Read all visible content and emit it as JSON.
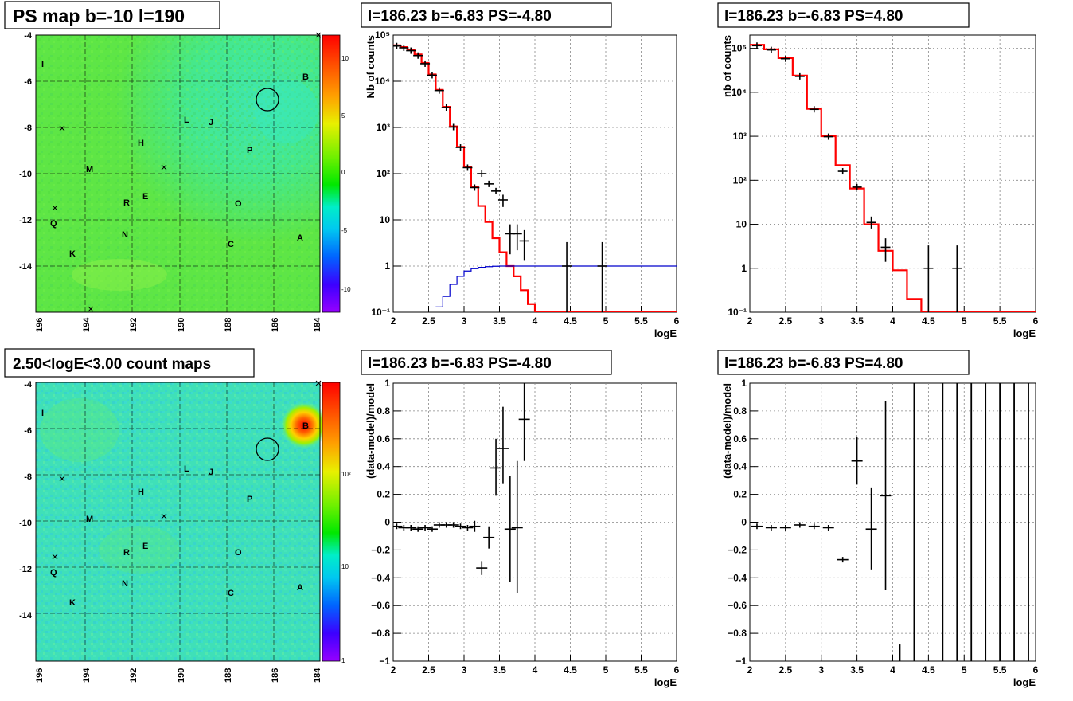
{
  "colors": {
    "red": "#ff0000",
    "blue": "#0000cc",
    "black": "#000000",
    "grid": "#888888"
  },
  "map_top": {
    "title": "PS map b=-10 l=190",
    "xticks": [
      "196",
      "194",
      "192",
      "190",
      "188",
      "186",
      "184"
    ],
    "yticks": [
      "-4",
      "-6",
      "-8",
      "-10",
      "-12",
      "-14"
    ],
    "scale_ticks": [
      "10",
      "5",
      "0",
      "-5",
      "-10"
    ],
    "sources": [
      "I",
      "B",
      "L",
      "J",
      "H",
      "P",
      "M",
      "E",
      "R",
      "O",
      "Q",
      "N",
      "C",
      "A",
      "K"
    ]
  },
  "map_bottom": {
    "title": "2.50<logE<3.00 count maps",
    "xticks": [
      "196",
      "194",
      "192",
      "190",
      "188",
      "186",
      "184"
    ],
    "yticks": [
      "-4",
      "-6",
      "-8",
      "-10",
      "-12",
      "-14"
    ],
    "scale_ticks": [
      "10²",
      "10",
      "1"
    ],
    "sources": [
      "I",
      "B",
      "L",
      "J",
      "H",
      "P",
      "M",
      "E",
      "R",
      "O",
      "Q",
      "N",
      "C",
      "A",
      "K"
    ]
  },
  "chart_data": [
    {
      "type": "line",
      "title": "l=186.23 b=-6.83 PS=-4.80",
      "xlabel": "logE",
      "ylabel": "Nb of counts",
      "xlim": [
        2,
        6
      ],
      "ylim": [
        0.1,
        100000
      ],
      "log_y": true,
      "grid": true,
      "xticks": [
        "2",
        "2.5",
        "3",
        "3.5",
        "4",
        "4.5",
        "5",
        "5.5",
        "6"
      ],
      "yticks": [
        "10⁻¹",
        "1",
        "10",
        "10²",
        "10³",
        "10⁴",
        "10⁵"
      ],
      "series": [
        {
          "style": "step",
          "color": "#ff0000",
          "x": [
            2.0,
            2.1,
            2.2,
            2.3,
            2.4,
            2.5,
            2.6,
            2.7,
            2.8,
            2.9,
            3.0,
            3.1,
            3.2,
            3.3,
            3.4,
            3.5,
            3.6,
            3.7,
            3.8,
            3.9,
            4.0,
            4.1,
            4.2,
            4.3,
            4.4,
            4.5,
            4.6,
            4.7,
            4.8,
            4.9,
            5.0,
            5.1,
            6.0
          ],
          "values": [
            60000,
            55000,
            48000,
            38000,
            25000,
            14000,
            6500,
            2800,
            1050,
            380,
            140,
            52,
            20,
            9,
            4,
            2,
            1,
            0.6,
            0.3,
            0.15,
            0.1,
            0.1,
            0.1,
            0.1,
            0.1,
            0.1,
            0.1,
            0.1,
            0.1,
            0.1,
            0.1,
            0.1,
            0.1
          ]
        },
        {
          "style": "step",
          "color": "#0000cc",
          "x": [
            2.6,
            2.7,
            2.8,
            2.9,
            3.0,
            3.1,
            3.2,
            3.3,
            3.4,
            3.5,
            3.6,
            3.7,
            3.8,
            3.9,
            4.0,
            6.0
          ],
          "values": [
            0.13,
            0.22,
            0.4,
            0.6,
            0.78,
            0.88,
            0.94,
            0.97,
            0.99,
            1,
            1,
            1,
            1,
            1,
            1,
            1
          ]
        },
        {
          "style": "points",
          "color": "#000000",
          "x": [
            2.05,
            2.15,
            2.25,
            2.35,
            2.45,
            2.55,
            2.65,
            2.75,
            2.85,
            2.95,
            3.05,
            3.15,
            3.25,
            3.35,
            3.45,
            3.55,
            3.65,
            3.75,
            3.85,
            4.45,
            4.95
          ],
          "values": [
            58000,
            53000,
            46000,
            36000,
            24000,
            13500,
            6300,
            2700,
            1020,
            370,
            135,
            50,
            100,
            60,
            42,
            27,
            5,
            5,
            3.5,
            1,
            1
          ],
          "err_lo": [
            0,
            0,
            0,
            0,
            0,
            0,
            0,
            0,
            0,
            0,
            0,
            0,
            0,
            0,
            0,
            8,
            3.2,
            2.8,
            2.2,
            0.9,
            0.9
          ],
          "err_hi": [
            0,
            0,
            0,
            0,
            0,
            0,
            0,
            0,
            0,
            0,
            0,
            0,
            0,
            0,
            0,
            8,
            3,
            3,
            2.5,
            2.3,
            2.3
          ]
        }
      ]
    },
    {
      "type": "line",
      "title": "l=186.23 b=-6.83 PS=4.80",
      "xlabel": "logE",
      "ylabel": "nb of counts",
      "xlim": [
        2,
        6
      ],
      "ylim": [
        0.1,
        200000
      ],
      "log_y": true,
      "grid": true,
      "xticks": [
        "2",
        "2.5",
        "3",
        "3.5",
        "4",
        "4.5",
        "5",
        "5.5",
        "6"
      ],
      "yticks": [
        "10⁻¹",
        "1",
        "10",
        "10²",
        "10³",
        "10⁴",
        "10⁵"
      ],
      "series": [
        {
          "style": "step",
          "color": "#ff0000",
          "x": [
            2.0,
            2.2,
            2.4,
            2.6,
            2.8,
            3.0,
            3.2,
            3.4,
            3.6,
            3.8,
            4.0,
            4.2,
            4.4,
            6.0
          ],
          "values": [
            120000,
            95000,
            60000,
            24000,
            4200,
            1000,
            220,
            65,
            10,
            2.5,
            0.9,
            0.2,
            0.1,
            0.1
          ]
        },
        {
          "style": "points",
          "color": "#000000",
          "x": [
            2.1,
            2.3,
            2.5,
            2.7,
            2.9,
            3.1,
            3.3,
            3.5,
            3.7,
            3.9,
            4.5,
            4.9
          ],
          "values": [
            115000,
            92000,
            58000,
            23000,
            4100,
            980,
            160,
            70,
            11,
            3,
            1,
            1
          ],
          "err_lo": [
            0,
            0,
            0,
            0,
            0,
            0,
            0,
            0,
            3,
            1.6,
            0.9,
            0.9
          ],
          "err_hi": [
            0,
            0,
            0,
            0,
            0,
            0,
            0,
            0,
            4,
            1.8,
            2.3,
            2.3
          ]
        }
      ]
    },
    {
      "type": "scatter",
      "title": "l=186.23 b=-6.83 PS=-4.80",
      "xlabel": "logE",
      "ylabel": "(data-model)/model",
      "xlim": [
        2,
        6
      ],
      "ylim": [
        -1,
        1
      ],
      "grid": true,
      "xticks": [
        "2",
        "2.5",
        "3",
        "3.5",
        "4",
        "4.5",
        "5",
        "5.5",
        "6"
      ],
      "yticks": [
        "−1",
        "−0.8",
        "−0.6",
        "−0.4",
        "−0.2",
        "0",
        "0.2",
        "0.4",
        "0.6",
        "0.8",
        "1"
      ],
      "series": [
        {
          "style": "points",
          "color": "#000000",
          "x": [
            2.05,
            2.15,
            2.25,
            2.35,
            2.45,
            2.55,
            2.65,
            2.75,
            2.85,
            2.95,
            3.05,
            3.15,
            3.25,
            3.35,
            3.45,
            3.55,
            3.65,
            3.75,
            3.85
          ],
          "values": [
            -0.03,
            -0.04,
            -0.04,
            -0.05,
            -0.04,
            -0.05,
            -0.02,
            -0.02,
            -0.02,
            -0.03,
            -0.04,
            -0.03,
            -0.33,
            -0.11,
            0.39,
            0.53,
            -0.05,
            -0.04,
            0.74
          ],
          "err_lo": [
            0.02,
            0.02,
            0.02,
            0.02,
            0.02,
            0.02,
            0.02,
            0.02,
            0.02,
            0.02,
            0.02,
            0.04,
            0.05,
            0.08,
            0.2,
            0.25,
            0.38,
            0.47,
            0.3
          ],
          "err_hi": [
            0.02,
            0.02,
            0.02,
            0.02,
            0.02,
            0.02,
            0.02,
            0.02,
            0.02,
            0.02,
            0.02,
            0.04,
            0.05,
            0.08,
            0.21,
            0.3,
            0.38,
            0.48,
            0.3
          ]
        }
      ]
    },
    {
      "type": "scatter",
      "title": "l=186.23 b=-6.83 PS=4.80",
      "xlabel": "logE",
      "ylabel": "(data-model)/model",
      "xlim": [
        2,
        6
      ],
      "ylim": [
        -1,
        1
      ],
      "grid": true,
      "xticks": [
        "2",
        "2.5",
        "3",
        "3.5",
        "4",
        "4.5",
        "5",
        "5.5",
        "6"
      ],
      "yticks": [
        "−1",
        "−0.8",
        "−0.6",
        "−0.4",
        "−0.2",
        "0",
        "0.2",
        "0.4",
        "0.6",
        "0.8",
        "1"
      ],
      "series": [
        {
          "style": "points",
          "color": "#000000",
          "x": [
            2.1,
            2.3,
            2.5,
            2.7,
            2.9,
            3.1,
            3.3,
            3.5,
            3.7,
            3.9
          ],
          "values": [
            -0.03,
            -0.04,
            -0.04,
            -0.02,
            -0.03,
            -0.04,
            -0.27,
            0.44,
            -0.05,
            0.19
          ],
          "err_lo": [
            0.02,
            0.02,
            0.02,
            0.02,
            0.02,
            0.02,
            0.02,
            0.17,
            0.29,
            0.68
          ],
          "err_hi": [
            0.02,
            0.02,
            0.02,
            0.02,
            0.02,
            0.02,
            0.02,
            0.17,
            0.3,
            0.68
          ]
        },
        {
          "style": "vlines",
          "color": "#000000",
          "x": [
            4.1,
            4.3,
            4.7,
            4.9,
            5.1,
            5.3,
            5.5,
            5.7,
            5.9
          ],
          "values": [
            -1,
            1,
            1,
            1,
            1,
            1,
            1,
            1,
            1
          ],
          "err_lo": [
            0,
            0,
            0,
            0,
            0,
            0,
            0,
            0,
            0
          ],
          "err_hi": [
            0.12,
            0,
            0,
            0,
            0,
            0,
            0,
            0,
            0
          ]
        }
      ]
    }
  ]
}
